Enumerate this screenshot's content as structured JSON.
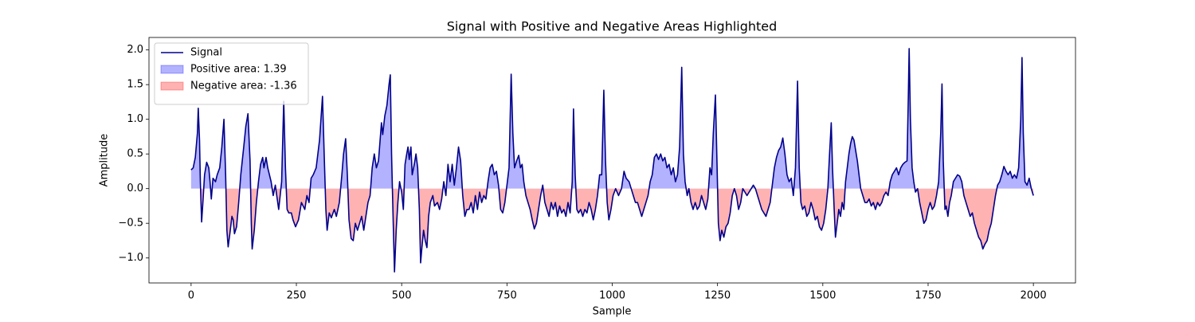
{
  "chart_data": {
    "type": "line",
    "title": "Signal with Positive and Negative Areas Highlighted",
    "xlabel": "Sample",
    "ylabel": "Amplitude",
    "xlim": [
      -100,
      2100
    ],
    "ylim": [
      -1.36,
      2.18
    ],
    "xticks": [
      0,
      250,
      500,
      750,
      1000,
      1250,
      1500,
      1750,
      2000
    ],
    "yticks": [
      {
        "value": -1.0,
        "label": "−1.0"
      },
      {
        "value": -0.5,
        "label": "−0.5"
      },
      {
        "value": 0.0,
        "label": "0.0"
      },
      {
        "value": 0.5,
        "label": "0.5"
      },
      {
        "value": 1.0,
        "label": "1.0"
      },
      {
        "value": 1.5,
        "label": "1.5"
      },
      {
        "value": 2.0,
        "label": "2.0"
      }
    ],
    "legend_position": "upper left",
    "x": [
      0,
      5,
      10,
      15,
      17,
      20,
      22,
      25,
      28,
      32,
      37,
      42,
      45,
      48,
      52,
      58,
      62,
      68,
      73,
      78,
      82,
      85,
      88,
      92,
      97,
      100,
      103,
      108,
      113,
      118,
      125,
      130,
      135,
      140,
      143,
      145,
      150,
      155,
      160,
      165,
      170,
      173,
      178,
      182,
      190,
      195,
      200,
      208,
      215,
      220,
      224,
      228,
      232,
      238,
      242,
      248,
      255,
      262,
      270,
      275,
      280,
      285,
      290,
      297,
      305,
      312,
      316,
      320,
      323,
      328,
      333,
      340,
      345,
      352,
      358,
      362,
      367,
      371,
      375,
      380,
      385,
      390,
      395,
      400,
      405,
      410,
      415,
      420,
      425,
      430,
      435,
      440,
      445,
      452,
      455,
      460,
      465,
      470,
      473,
      476,
      480,
      483,
      487,
      491,
      495,
      500,
      504,
      508,
      512,
      515,
      518,
      522,
      525,
      530,
      534,
      538,
      542,
      545,
      548,
      552,
      556,
      560,
      564,
      568,
      574,
      578,
      585,
      590,
      595,
      600,
      605,
      610,
      615,
      620,
      625,
      630,
      635,
      640,
      645,
      650,
      655,
      660,
      665,
      670,
      675,
      680,
      685,
      690,
      695,
      700,
      705,
      710,
      715,
      720,
      725,
      730,
      735,
      740,
      745,
      750,
      755,
      760,
      764,
      768,
      773,
      778,
      782,
      786,
      790,
      795,
      800,
      805,
      810,
      815,
      820,
      825,
      830,
      835,
      840,
      845,
      850,
      855,
      860,
      865,
      870,
      875,
      880,
      885,
      890,
      895,
      900,
      905,
      908,
      912,
      916,
      920,
      925,
      930,
      935,
      940,
      945,
      950,
      955,
      960,
      965,
      970,
      975,
      980,
      984,
      988,
      992,
      997,
      1002,
      1008,
      1015,
      1022,
      1028,
      1033,
      1040,
      1045,
      1050,
      1055,
      1060,
      1065,
      1070,
      1075,
      1080,
      1085,
      1090,
      1095,
      1100,
      1105,
      1110,
      1115,
      1120,
      1125,
      1130,
      1135,
      1140,
      1145,
      1150,
      1155,
      1160,
      1165,
      1169,
      1173,
      1178,
      1182,
      1187,
      1192,
      1197,
      1202,
      1207,
      1212,
      1217,
      1222,
      1227,
      1232,
      1236,
      1240,
      1245,
      1249,
      1252,
      1256,
      1260,
      1265,
      1270,
      1275,
      1280,
      1285,
      1290,
      1295,
      1300,
      1305,
      1310,
      1315,
      1320,
      1325,
      1330,
      1335,
      1340,
      1345,
      1350,
      1355,
      1360,
      1365,
      1370,
      1375,
      1380,
      1385,
      1390,
      1395,
      1400,
      1405,
      1410,
      1415,
      1420,
      1425,
      1430,
      1435,
      1440,
      1444,
      1448,
      1452,
      1457,
      1462,
      1467,
      1472,
      1477,
      1482,
      1487,
      1492,
      1497,
      1502,
      1507,
      1512,
      1516,
      1520,
      1523,
      1527,
      1530,
      1534,
      1538,
      1542,
      1546,
      1550,
      1554,
      1558,
      1562,
      1566,
      1570,
      1574,
      1578,
      1582,
      1586,
      1590,
      1595,
      1600,
      1605,
      1610,
      1615,
      1620,
      1625,
      1630,
      1635,
      1640,
      1645,
      1650,
      1655,
      1660,
      1665,
      1670,
      1675,
      1680,
      1685,
      1690,
      1695,
      1700,
      1703,
      1705,
      1708,
      1712,
      1716,
      1720,
      1725,
      1730,
      1735,
      1740,
      1745,
      1750,
      1755,
      1760,
      1765,
      1770,
      1775,
      1780,
      1783,
      1786,
      1790,
      1793,
      1797,
      1801,
      1805,
      1810,
      1815,
      1820,
      1825,
      1830,
      1835,
      1840,
      1845,
      1850,
      1855,
      1860,
      1865,
      1870,
      1875,
      1880,
      1885,
      1890,
      1895,
      1900,
      1905,
      1910,
      1915,
      1920,
      1925,
      1930,
      1935,
      1940,
      1945,
      1950,
      1955,
      1960,
      1965,
      1970,
      1973,
      1976,
      1980,
      1985,
      1990,
      1995,
      2000
    ],
    "series": [
      {
        "name": "Signal",
        "color": "#00008b",
        "values": [
          0.27,
          0.3,
          0.45,
          0.8,
          1.16,
          0.7,
          0.1,
          -0.48,
          -0.2,
          0.2,
          0.38,
          0.3,
          0.1,
          -0.15,
          0.15,
          0.1,
          0.2,
          0.3,
          0.6,
          1.0,
          0.2,
          -0.6,
          -0.84,
          -0.65,
          -0.4,
          -0.45,
          -0.65,
          -0.55,
          -0.2,
          0.2,
          0.6,
          0.9,
          1.08,
          0.4,
          -0.5,
          -0.87,
          -0.6,
          -0.2,
          0.1,
          0.35,
          0.45,
          0.3,
          0.45,
          0.3,
          0.1,
          -0.1,
          0.05,
          -0.3,
          0.1,
          1.26,
          0.3,
          -0.3,
          -0.35,
          -0.35,
          -0.45,
          -0.55,
          -0.45,
          -0.2,
          -0.3,
          -0.1,
          -0.2,
          0.15,
          0.2,
          0.3,
          0.7,
          1.33,
          0.5,
          -0.3,
          -0.6,
          -0.35,
          -0.42,
          -0.3,
          -0.4,
          -0.2,
          0.2,
          0.5,
          0.72,
          0.2,
          -0.45,
          -0.72,
          -0.75,
          -0.5,
          -0.6,
          -0.5,
          -0.4,
          -0.6,
          -0.4,
          -0.2,
          -0.1,
          0.3,
          0.5,
          0.3,
          0.4,
          0.95,
          0.78,
          1.05,
          1.2,
          1.5,
          1.64,
          0.5,
          -0.5,
          -1.2,
          -0.6,
          -0.2,
          0.1,
          -0.05,
          -0.3,
          0.35,
          0.5,
          0.6,
          0.42,
          0.6,
          0.2,
          0.35,
          0.5,
          0.3,
          -0.3,
          -1.07,
          -0.85,
          -0.6,
          -0.75,
          -0.85,
          -0.4,
          -0.2,
          -0.1,
          -0.25,
          -0.2,
          -0.3,
          -0.15,
          0.1,
          -0.1,
          0.35,
          0.1,
          0.35,
          0.05,
          0.3,
          0.6,
          0.4,
          -0.1,
          -0.4,
          -0.3,
          -0.3,
          -0.2,
          -0.35,
          -0.1,
          -0.3,
          -0.05,
          -0.2,
          -0.1,
          -0.15,
          0.1,
          0.3,
          0.35,
          0.2,
          0.25,
          0.05,
          -0.3,
          -0.35,
          -0.2,
          0.05,
          0.3,
          1.65,
          0.8,
          0.3,
          0.4,
          0.48,
          0.3,
          0.35,
          0.1,
          -0.1,
          -0.2,
          -0.3,
          -0.45,
          -0.58,
          -0.5,
          -0.3,
          -0.1,
          0.05,
          -0.2,
          -0.3,
          -0.4,
          -0.2,
          -0.3,
          -0.2,
          -0.4,
          -0.25,
          -0.35,
          -0.3,
          -0.4,
          -0.2,
          -0.35,
          0.1,
          1.15,
          0.2,
          -0.3,
          -0.35,
          -0.3,
          -0.4,
          -0.3,
          -0.35,
          -0.2,
          -0.3,
          -0.45,
          -0.3,
          -0.1,
          0.2,
          0.2,
          1.42,
          0.4,
          -0.2,
          -0.45,
          -0.3,
          -0.1,
          0.0,
          -0.1,
          0.0,
          0.25,
          0.15,
          0.1,
          0.0,
          -0.1,
          -0.2,
          -0.2,
          -0.3,
          -0.4,
          -0.3,
          -0.2,
          -0.1,
          0.1,
          0.2,
          0.45,
          0.5,
          0.42,
          0.5,
          0.4,
          0.45,
          0.3,
          0.35,
          0.2,
          0.3,
          0.1,
          0.2,
          0.6,
          1.75,
          0.5,
          0.1,
          -0.1,
          0.0,
          -0.2,
          -0.3,
          -0.2,
          -0.3,
          -0.25,
          -0.1,
          -0.2,
          -0.3,
          -0.15,
          0.3,
          0.2,
          0.8,
          1.35,
          0.3,
          -0.5,
          -0.75,
          -0.6,
          -0.7,
          -0.55,
          -0.5,
          -0.35,
          -0.1,
          0.0,
          -0.1,
          -0.3,
          -0.2,
          0.0,
          -0.05,
          -0.1,
          -0.05,
          0.0,
          0.05,
          0.0,
          -0.1,
          -0.2,
          -0.3,
          -0.35,
          -0.4,
          -0.3,
          -0.2,
          0.05,
          0.3,
          0.45,
          0.55,
          0.6,
          0.73,
          0.5,
          0.2,
          0.1,
          0.15,
          -0.1,
          0.3,
          1.55,
          0.3,
          -0.2,
          -0.3,
          -0.25,
          -0.4,
          -0.35,
          -0.2,
          -0.3,
          -0.45,
          -0.4,
          -0.55,
          -0.6,
          -0.5,
          -0.3,
          0.0,
          0.5,
          0.95,
          0.3,
          -0.3,
          -0.7,
          -0.5,
          -0.3,
          -0.4,
          -0.2,
          -0.3,
          0.1,
          0.3,
          0.5,
          0.65,
          0.75,
          0.7,
          0.55,
          0.4,
          0.2,
          0.0,
          -0.1,
          -0.2,
          -0.2,
          -0.15,
          -0.25,
          -0.2,
          -0.3,
          -0.2,
          -0.25,
          -0.2,
          -0.1,
          -0.05,
          -0.1,
          0.1,
          0.2,
          0.25,
          0.3,
          0.2,
          0.3,
          0.35,
          0.38,
          0.4,
          1.3,
          2.02,
          1.0,
          0.3,
          0.1,
          -0.05,
          0.0,
          -0.2,
          -0.35,
          -0.5,
          -0.45,
          -0.3,
          -0.2,
          -0.3,
          -0.25,
          -0.1,
          0.1,
          0.8,
          1.51,
          0.4,
          -0.3,
          -0.25,
          -0.4,
          -0.2,
          -0.1,
          0.1,
          0.15,
          0.2,
          0.18,
          0.1,
          -0.1,
          -0.2,
          -0.3,
          -0.4,
          -0.35,
          -0.5,
          -0.6,
          -0.7,
          -0.75,
          -0.87,
          -0.8,
          -0.75,
          -0.6,
          -0.5,
          -0.3,
          -0.1,
          0.05,
          0.1,
          0.2,
          0.32,
          0.25,
          0.2,
          0.25,
          0.15,
          0.2,
          0.15,
          0.3,
          1.0,
          1.89,
          0.8,
          0.1,
          0.05,
          0.15,
          0.0,
          -0.1
        ]
      }
    ],
    "fills": [
      {
        "name": "Positive area: 1.39",
        "color": "#0000ff"
      },
      {
        "name": "Negative area: -1.36",
        "color": "#ff0000"
      }
    ]
  }
}
